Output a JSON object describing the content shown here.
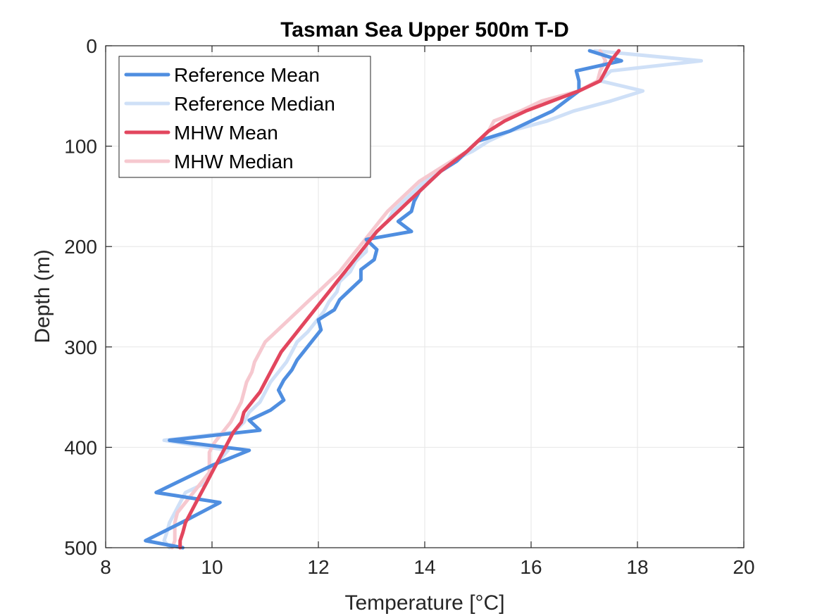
{
  "chart_data": {
    "type": "line",
    "title": "Tasman Sea Upper 500m T-D",
    "xlabel": "Temperature [°C]",
    "ylabel": "Depth (m)",
    "xlim": [
      8,
      20
    ],
    "ylim": [
      0,
      500
    ],
    "y_reversed": true,
    "grid": true,
    "legend_position": "top-left",
    "x_ticks": [
      "8",
      "10",
      "12",
      "14",
      "16",
      "18",
      "20"
    ],
    "y_ticks": [
      "0",
      "100",
      "200",
      "300",
      "400",
      "500"
    ],
    "series": [
      {
        "name": "Reference Median",
        "color": "#cfe0f7",
        "points": [
          [
            17.2,
            5
          ],
          [
            19.2,
            15
          ],
          [
            17.5,
            25
          ],
          [
            17.3,
            35
          ],
          [
            18.1,
            45
          ],
          [
            17.5,
            55
          ],
          [
            16.8,
            65
          ],
          [
            16.3,
            75
          ],
          [
            15.6,
            85
          ],
          [
            15.2,
            95
          ],
          [
            14.9,
            105
          ],
          [
            14.5,
            115
          ],
          [
            14.2,
            125
          ],
          [
            14.0,
            135
          ],
          [
            13.8,
            145
          ],
          [
            13.6,
            155
          ],
          [
            13.4,
            165
          ],
          [
            13.3,
            175
          ],
          [
            13.1,
            185
          ],
          [
            12.9,
            195
          ],
          [
            12.9,
            205
          ],
          [
            12.7,
            215
          ],
          [
            12.6,
            225
          ],
          [
            12.4,
            235
          ],
          [
            12.35,
            245
          ],
          [
            12.2,
            255
          ],
          [
            12.1,
            265
          ],
          [
            11.95,
            275
          ],
          [
            11.8,
            285
          ],
          [
            11.6,
            295
          ],
          [
            11.5,
            305
          ],
          [
            11.4,
            315
          ],
          [
            11.25,
            325
          ],
          [
            11.1,
            335
          ],
          [
            11.0,
            345
          ],
          [
            10.9,
            355
          ],
          [
            10.7,
            365
          ],
          [
            10.6,
            375
          ],
          [
            10.4,
            385
          ],
          [
            9.1,
            393
          ],
          [
            10.3,
            403
          ],
          [
            10.1,
            415
          ],
          [
            9.95,
            425
          ],
          [
            9.9,
            435
          ],
          [
            9.5,
            445
          ],
          [
            9.4,
            455
          ],
          [
            9.3,
            465
          ],
          [
            9.2,
            475
          ],
          [
            9.15,
            485
          ],
          [
            9.1,
            493
          ],
          [
            9.2,
            500
          ]
        ]
      },
      {
        "name": "MHW Median",
        "color": "#f6c8cf",
        "points": [
          [
            17.3,
            5
          ],
          [
            17.4,
            15
          ],
          [
            17.3,
            25
          ],
          [
            17.25,
            35
          ],
          [
            16.9,
            45
          ],
          [
            16.2,
            55
          ],
          [
            15.8,
            65
          ],
          [
            15.3,
            75
          ],
          [
            15.2,
            85
          ],
          [
            15.0,
            95
          ],
          [
            14.8,
            105
          ],
          [
            14.5,
            115
          ],
          [
            14.2,
            125
          ],
          [
            13.9,
            135
          ],
          [
            13.7,
            145
          ],
          [
            13.5,
            155
          ],
          [
            13.3,
            165
          ],
          [
            13.15,
            175
          ],
          [
            13.0,
            185
          ],
          [
            12.85,
            195
          ],
          [
            12.7,
            205
          ],
          [
            12.55,
            215
          ],
          [
            12.4,
            225
          ],
          [
            12.2,
            235
          ],
          [
            12.0,
            245
          ],
          [
            11.8,
            255
          ],
          [
            11.6,
            265
          ],
          [
            11.4,
            275
          ],
          [
            11.2,
            285
          ],
          [
            11.0,
            295
          ],
          [
            10.9,
            305
          ],
          [
            10.8,
            315
          ],
          [
            10.75,
            325
          ],
          [
            10.65,
            335
          ],
          [
            10.6,
            345
          ],
          [
            10.55,
            355
          ],
          [
            10.45,
            365
          ],
          [
            10.35,
            375
          ],
          [
            10.2,
            385
          ],
          [
            10.05,
            395
          ],
          [
            9.95,
            405
          ],
          [
            9.95,
            415
          ],
          [
            9.95,
            425
          ],
          [
            9.8,
            435
          ],
          [
            9.65,
            445
          ],
          [
            9.5,
            455
          ],
          [
            9.35,
            465
          ],
          [
            9.3,
            475
          ],
          [
            9.3,
            485
          ],
          [
            9.3,
            493
          ],
          [
            9.25,
            500
          ]
        ]
      },
      {
        "name": "Reference Mean",
        "color": "#4f8ee0",
        "points": [
          [
            17.1,
            5
          ],
          [
            17.7,
            15
          ],
          [
            16.85,
            25
          ],
          [
            16.9,
            35
          ],
          [
            16.9,
            45
          ],
          [
            16.65,
            55
          ],
          [
            16.4,
            65
          ],
          [
            16.0,
            75
          ],
          [
            15.6,
            85
          ],
          [
            15.0,
            95
          ],
          [
            14.8,
            105
          ],
          [
            14.6,
            115
          ],
          [
            14.3,
            125
          ],
          [
            14.1,
            135
          ],
          [
            13.9,
            145
          ],
          [
            13.8,
            155
          ],
          [
            13.75,
            165
          ],
          [
            13.5,
            175
          ],
          [
            13.75,
            185
          ],
          [
            12.9,
            193
          ],
          [
            13.1,
            203
          ],
          [
            13.05,
            213
          ],
          [
            12.8,
            223
          ],
          [
            12.8,
            233
          ],
          [
            12.6,
            243
          ],
          [
            12.4,
            253
          ],
          [
            12.3,
            263
          ],
          [
            12.0,
            273
          ],
          [
            12.05,
            283
          ],
          [
            11.9,
            293
          ],
          [
            11.75,
            303
          ],
          [
            11.6,
            313
          ],
          [
            11.5,
            323
          ],
          [
            11.35,
            333
          ],
          [
            11.25,
            343
          ],
          [
            11.35,
            353
          ],
          [
            11.1,
            363
          ],
          [
            10.7,
            373
          ],
          [
            10.9,
            383
          ],
          [
            9.2,
            393
          ],
          [
            10.7,
            403
          ],
          [
            10.0,
            418
          ],
          [
            8.95,
            445
          ],
          [
            10.15,
            455
          ],
          [
            9.5,
            473
          ],
          [
            8.75,
            493
          ],
          [
            9.45,
            500
          ]
        ]
      },
      {
        "name": "MHW Mean",
        "color": "#e2465e",
        "points": [
          [
            17.65,
            5
          ],
          [
            17.5,
            15
          ],
          [
            17.4,
            25
          ],
          [
            17.3,
            35
          ],
          [
            16.9,
            45
          ],
          [
            16.4,
            55
          ],
          [
            15.9,
            65
          ],
          [
            15.5,
            75
          ],
          [
            15.2,
            85
          ],
          [
            15.0,
            95
          ],
          [
            14.8,
            105
          ],
          [
            14.55,
            115
          ],
          [
            14.3,
            125
          ],
          [
            14.1,
            135
          ],
          [
            13.9,
            145
          ],
          [
            13.7,
            155
          ],
          [
            13.5,
            165
          ],
          [
            13.3,
            175
          ],
          [
            13.1,
            185
          ],
          [
            12.95,
            195
          ],
          [
            12.8,
            205
          ],
          [
            12.65,
            215
          ],
          [
            12.5,
            225
          ],
          [
            12.35,
            235
          ],
          [
            12.2,
            245
          ],
          [
            12.05,
            255
          ],
          [
            11.9,
            265
          ],
          [
            11.75,
            275
          ],
          [
            11.6,
            285
          ],
          [
            11.45,
            295
          ],
          [
            11.3,
            305
          ],
          [
            11.2,
            315
          ],
          [
            11.1,
            325
          ],
          [
            11.0,
            335
          ],
          [
            10.9,
            345
          ],
          [
            10.75,
            355
          ],
          [
            10.6,
            365
          ],
          [
            10.55,
            375
          ],
          [
            10.4,
            385
          ],
          [
            10.3,
            395
          ],
          [
            10.2,
            405
          ],
          [
            10.1,
            415
          ],
          [
            10.0,
            425
          ],
          [
            9.9,
            435
          ],
          [
            9.8,
            445
          ],
          [
            9.7,
            455
          ],
          [
            9.6,
            465
          ],
          [
            9.5,
            475
          ],
          [
            9.45,
            485
          ],
          [
            9.4,
            493
          ],
          [
            9.4,
            500
          ]
        ]
      }
    ],
    "legend": [
      {
        "label": "Reference Mean",
        "color": "#4f8ee0"
      },
      {
        "label": "Reference Median",
        "color": "#cfe0f7"
      },
      {
        "label": "MHW Mean",
        "color": "#e2465e"
      },
      {
        "label": "MHW Median",
        "color": "#f6c8cf"
      }
    ]
  }
}
